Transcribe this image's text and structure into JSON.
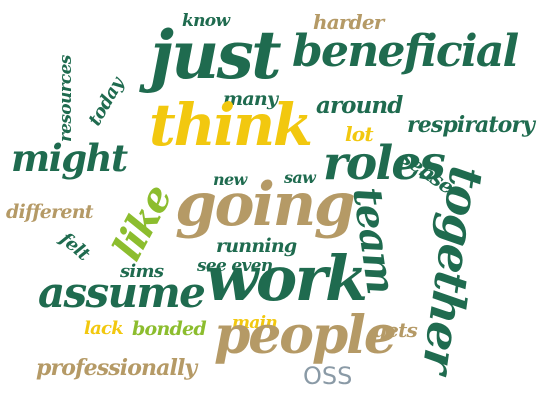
{
  "colors": {
    "dark_green": "#1f6b4f",
    "tan": "#b59a66",
    "yellow": "#f2c80f",
    "lime": "#8cbd2e",
    "gray_blue": "#8a9aa6"
  },
  "words": {
    "just": "just",
    "beneficial": "beneficial",
    "know": "know",
    "harder": "harder",
    "resources": "resources",
    "today": "today",
    "many": "many",
    "around": "around",
    "think": "think",
    "lot": "lot",
    "respiratory": "respiratory",
    "might": "might",
    "roles": "roles",
    "sense": "sense",
    "new": "new",
    "saw": "saw",
    "like": "like",
    "going": "going",
    "team": "team",
    "together": "together",
    "different": "different",
    "felt": "felt",
    "running": "running",
    "sims": "sims",
    "see_even": "see even",
    "work": "work",
    "assume": "assume",
    "main": "main",
    "lack": "lack",
    "bonded": "bonded",
    "gets": "gets",
    "people": "people",
    "professionally": "professionally",
    "oss": "OSS"
  }
}
